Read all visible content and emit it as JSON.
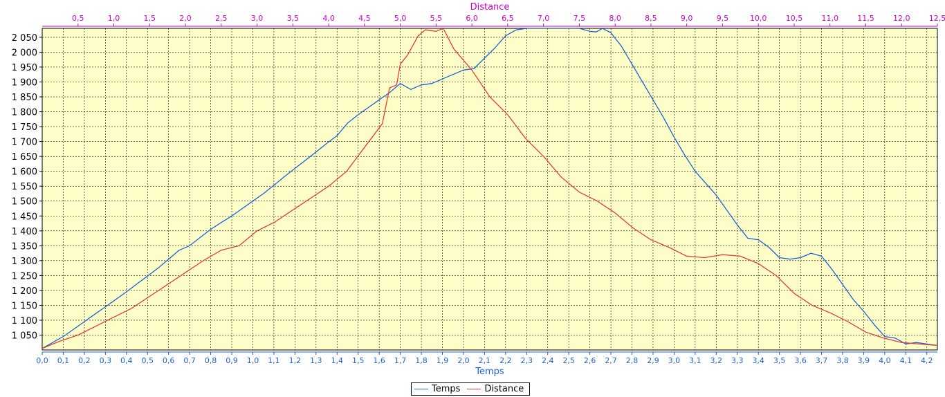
{
  "chart_data": {
    "type": "line",
    "title": "",
    "xlabel": "Temps",
    "x2label": "Distance",
    "ylabel": "",
    "xlim": [
      0,
      4.25
    ],
    "x2lim": [
      0,
      12.5
    ],
    "ylim": [
      1000,
      2080
    ],
    "grid": true,
    "legend_position": "bottom-center",
    "colors": {
      "plot_background": "#fdfdc8",
      "grid": "#000000",
      "x_axis": "#1a62d6",
      "x2_axis": "#cc00cc",
      "y_axis": "#000000"
    },
    "x_ticks": [
      "0,0",
      "0,1",
      "0,2",
      "0,3",
      "0,4",
      "0,5",
      "0,6",
      "0,7",
      "0,8",
      "0,9",
      "1,0",
      "1,1",
      "1,2",
      "1,3",
      "1,4",
      "1,5",
      "1,6",
      "1,7",
      "1,8",
      "1,9",
      "2,0",
      "2,1",
      "2,2",
      "2,3",
      "2,4",
      "2,5",
      "2,6",
      "2,7",
      "2,8",
      "2,9",
      "3,0",
      "3,1",
      "3,2",
      "3,3",
      "3,4",
      "3,5",
      "3,6",
      "3,7",
      "3,8",
      "3,9",
      "4,0",
      "4,1",
      "4,2"
    ],
    "x2_ticks": [
      "0,5",
      "1,0",
      "1,5",
      "2,0",
      "2,5",
      "3,0",
      "3,5",
      "4,0",
      "4,5",
      "5,0",
      "5,5",
      "6,0",
      "6,5",
      "7,0",
      "7,5",
      "8,0",
      "8,5",
      "9,0",
      "9,5",
      "10,0",
      "10,5",
      "11,0",
      "11,5",
      "12,0",
      "12,5"
    ],
    "y_ticks": [
      "1 050",
      "1 100",
      "1 150",
      "1 200",
      "1 250",
      "1 300",
      "1 350",
      "1 400",
      "1 450",
      "1 500",
      "1 550",
      "1 600",
      "1 650",
      "1 700",
      "1 750",
      "1 800",
      "1 850",
      "1 900",
      "1 950",
      "2 000",
      "2 050"
    ],
    "series": [
      {
        "name": "Temps",
        "axis": "x",
        "color": "#1a62d6",
        "x": [
          0.0,
          0.05,
          0.1,
          0.15,
          0.2,
          0.25,
          0.3,
          0.35,
          0.4,
          0.45,
          0.5,
          0.55,
          0.6,
          0.65,
          0.7,
          0.75,
          0.8,
          0.85,
          0.9,
          0.95,
          1.0,
          1.05,
          1.1,
          1.15,
          1.2,
          1.25,
          1.3,
          1.35,
          1.4,
          1.45,
          1.5,
          1.55,
          1.6,
          1.65,
          1.7,
          1.75,
          1.8,
          1.85,
          1.9,
          1.95,
          2.0,
          2.05,
          2.1,
          2.15,
          2.2,
          2.25,
          2.3,
          2.35,
          2.4,
          2.45,
          2.5,
          2.55,
          2.6,
          2.63,
          2.66,
          2.7,
          2.75,
          2.8,
          2.85,
          2.9,
          2.95,
          3.0,
          3.05,
          3.1,
          3.15,
          3.2,
          3.25,
          3.3,
          3.35,
          3.4,
          3.45,
          3.5,
          3.55,
          3.6,
          3.65,
          3.7,
          3.75,
          3.8,
          3.85,
          3.9,
          3.95,
          4.0,
          4.05,
          4.1,
          4.15,
          4.2,
          4.25
        ],
        "y": [
          1005,
          1025,
          1045,
          1070,
          1095,
          1120,
          1145,
          1170,
          1195,
          1222,
          1248,
          1275,
          1305,
          1335,
          1350,
          1378,
          1405,
          1428,
          1450,
          1475,
          1500,
          1525,
          1553,
          1582,
          1610,
          1637,
          1665,
          1693,
          1720,
          1762,
          1790,
          1815,
          1840,
          1865,
          1895,
          1875,
          1890,
          1895,
          1910,
          1925,
          1940,
          1945,
          1980,
          2015,
          2055,
          2075,
          2080,
          2080,
          2080,
          2080,
          2080,
          2080,
          2070,
          2068,
          2080,
          2065,
          2020,
          1960,
          1900,
          1840,
          1780,
          1715,
          1655,
          1600,
          1560,
          1520,
          1470,
          1420,
          1375,
          1370,
          1345,
          1310,
          1305,
          1310,
          1325,
          1315,
          1270,
          1220,
          1170,
          1130,
          1085,
          1045,
          1040,
          1020,
          1025,
          1020,
          1015
        ]
      },
      {
        "name": "Distance",
        "axis": "x2",
        "color": "#e83a3a",
        "x": [
          0.0,
          0.25,
          0.5,
          0.75,
          1.0,
          1.25,
          1.5,
          1.75,
          2.0,
          2.25,
          2.5,
          2.75,
          3.0,
          3.25,
          3.5,
          3.75,
          4.0,
          4.25,
          4.5,
          4.75,
          4.85,
          4.95,
          5.0,
          5.1,
          5.25,
          5.35,
          5.5,
          5.6,
          5.75,
          6.0,
          6.25,
          6.5,
          6.75,
          7.0,
          7.25,
          7.5,
          7.75,
          8.0,
          8.25,
          8.5,
          8.75,
          9.0,
          9.25,
          9.5,
          9.75,
          10.0,
          10.25,
          10.5,
          10.75,
          11.0,
          11.25,
          11.5,
          11.75,
          12.0,
          12.25,
          12.5
        ],
        "y": [
          1005,
          1030,
          1050,
          1080,
          1110,
          1140,
          1180,
          1220,
          1260,
          1300,
          1335,
          1350,
          1400,
          1430,
          1470,
          1510,
          1550,
          1600,
          1680,
          1760,
          1880,
          1890,
          1960,
          1990,
          2055,
          2075,
          2070,
          2080,
          2010,
          1940,
          1850,
          1790,
          1710,
          1650,
          1580,
          1530,
          1500,
          1460,
          1410,
          1370,
          1345,
          1315,
          1310,
          1320,
          1315,
          1290,
          1250,
          1190,
          1150,
          1125,
          1095,
          1060,
          1040,
          1025,
          1020,
          1015
        ]
      }
    ]
  }
}
